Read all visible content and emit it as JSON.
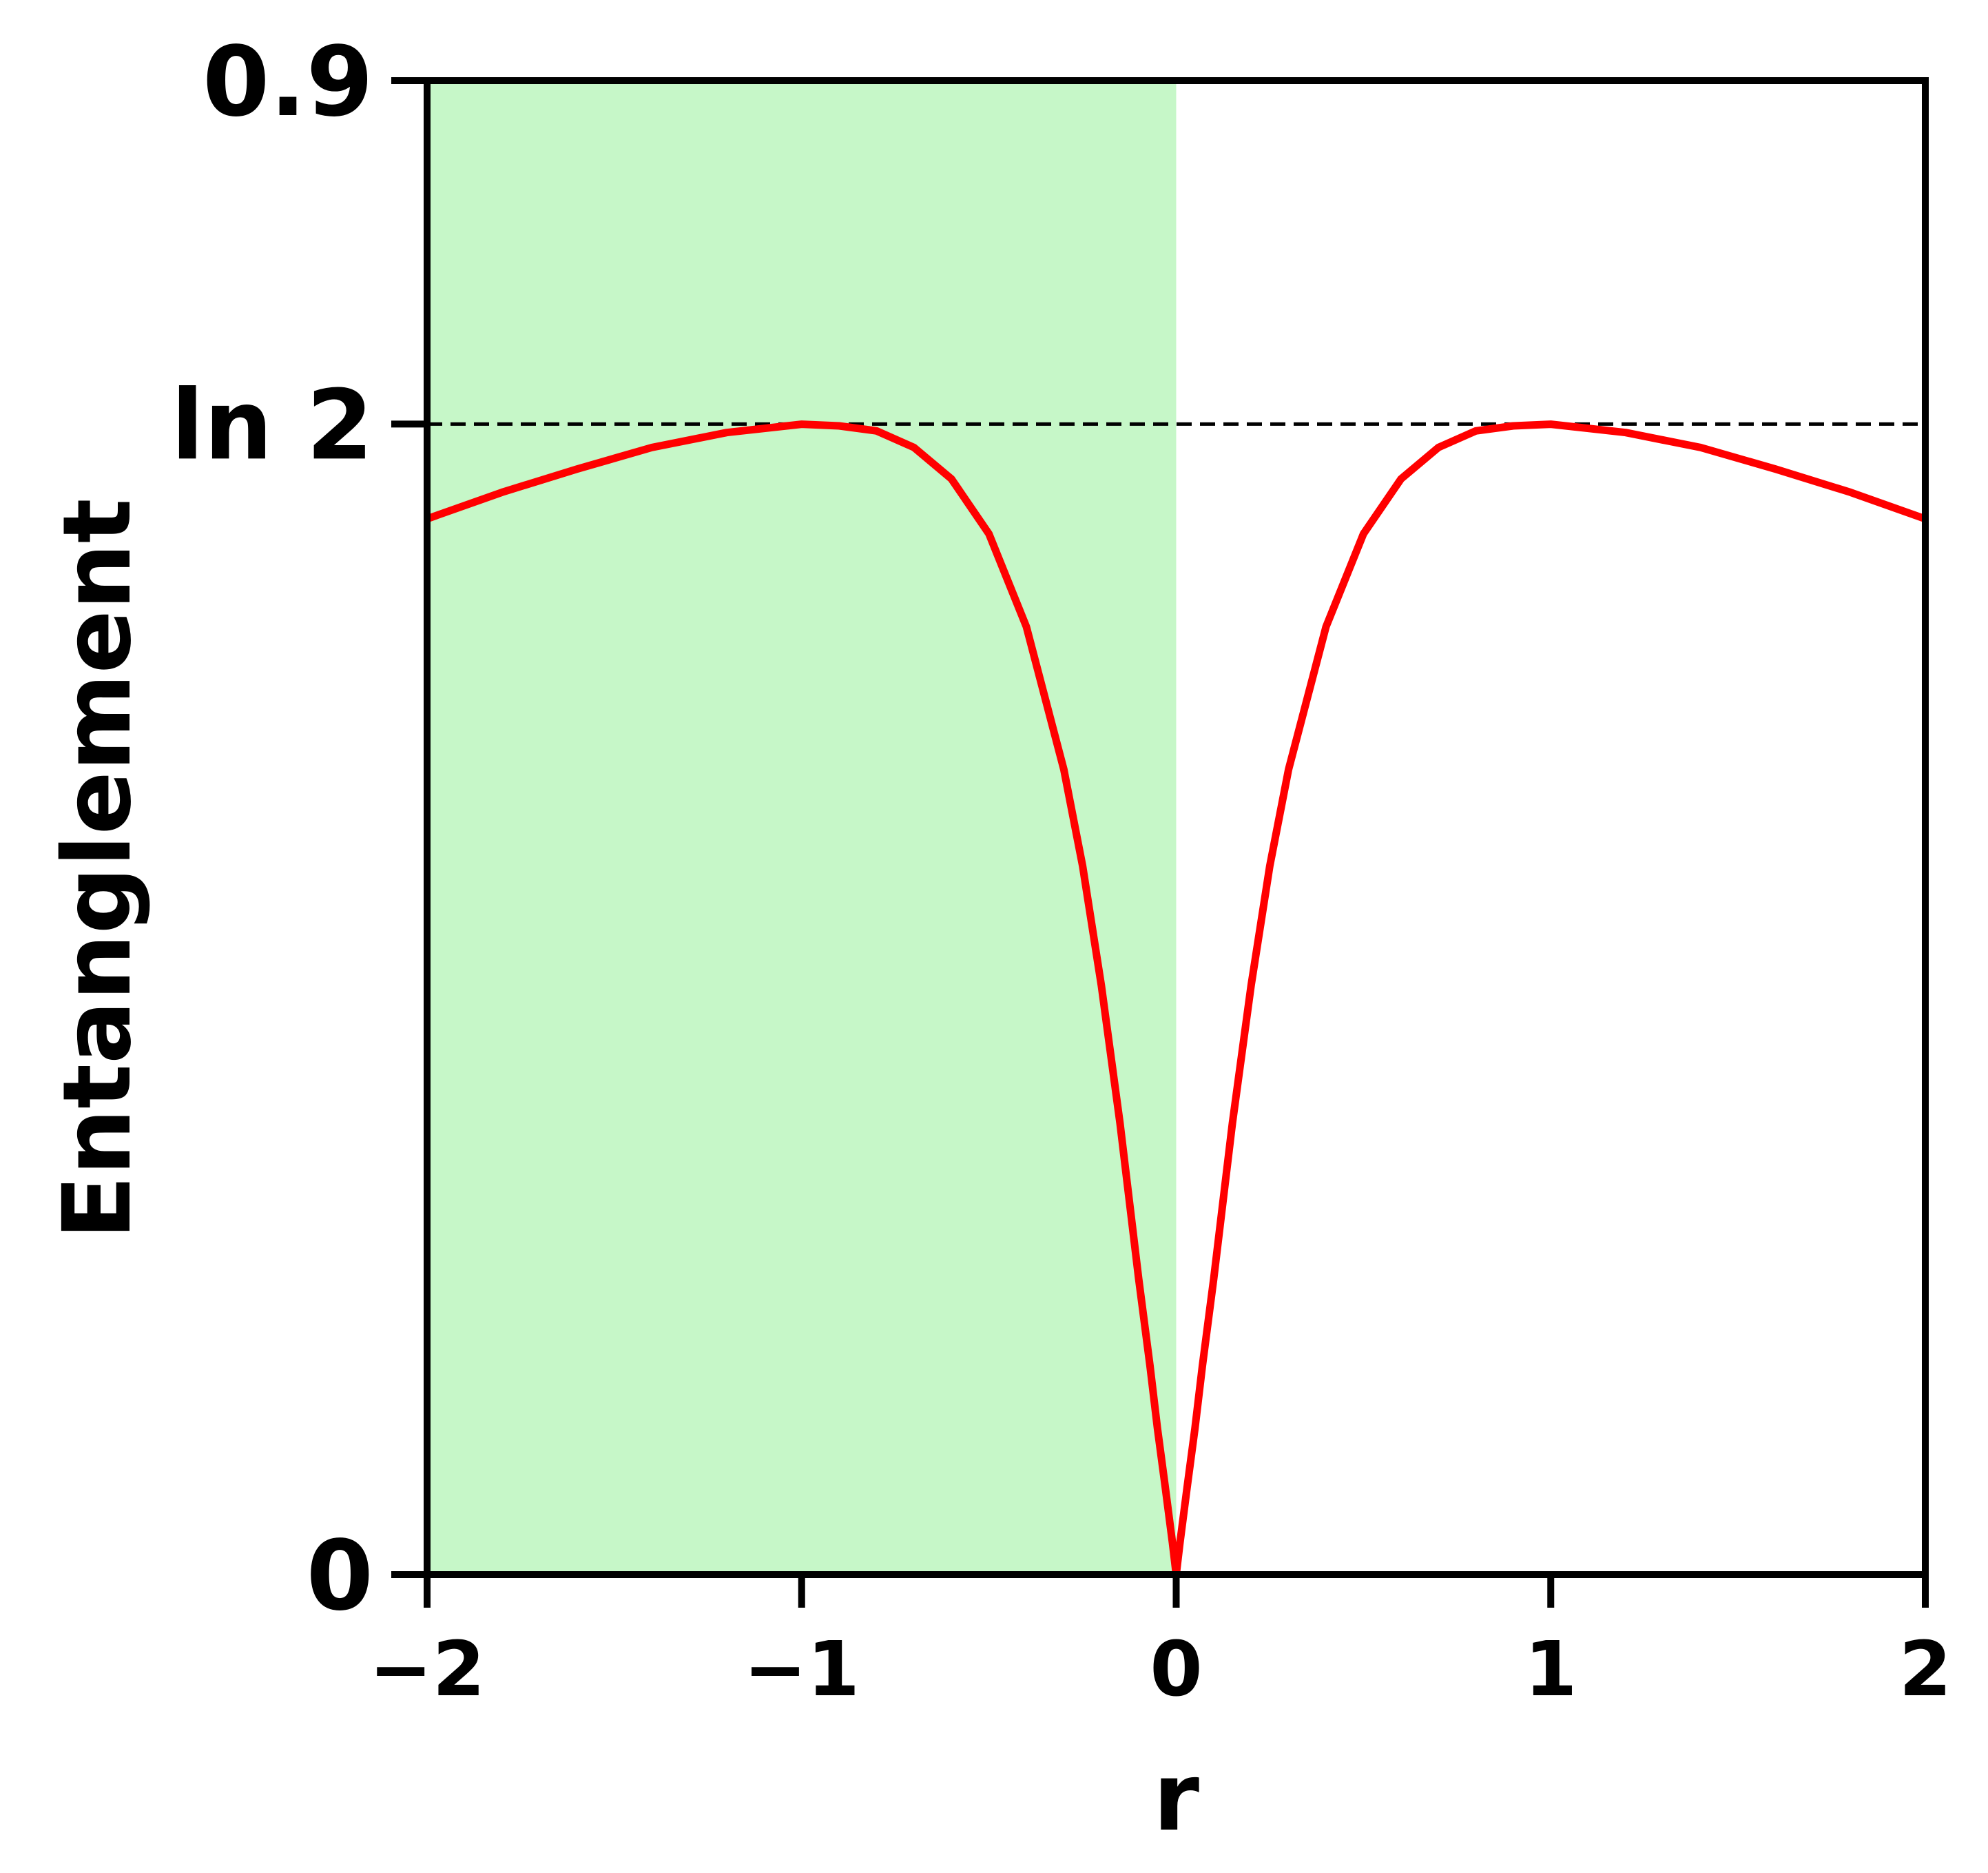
{
  "chart_data": {
    "type": "line",
    "title": "",
    "xlabel": "r",
    "ylabel": "Entanglement",
    "xlim": [
      -2,
      2
    ],
    "ylim": [
      0,
      0.9
    ],
    "x_ticks": [
      -2,
      -1,
      0,
      1,
      2
    ],
    "x_tick_labels": [
      "−2",
      "−1",
      "0",
      "1",
      "2"
    ],
    "y_ticks": [
      0,
      0.6931,
      0.9
    ],
    "y_tick_labels": [
      "0",
      "ln 2",
      "0.9"
    ],
    "reference_line": {
      "y": 0.6931,
      "style": "dashed",
      "color": "#000000"
    },
    "shaded_region": {
      "x_from": -2,
      "x_to": 0,
      "color": "#c6f7c8"
    },
    "grid": false,
    "series": [
      {
        "color": "#ff0000",
        "x": [
          -2.0,
          -1.8,
          -1.6,
          -1.4,
          -1.2,
          -1.0,
          -0.9,
          -0.8,
          -0.7,
          -0.6,
          -0.5,
          -0.4,
          -0.3,
          -0.25,
          -0.2,
          -0.15,
          -0.1,
          -0.07,
          -0.05,
          -0.03,
          -0.01,
          0.0,
          0.01,
          0.03,
          0.05,
          0.07,
          0.1,
          0.15,
          0.2,
          0.25,
          0.3,
          0.4,
          0.5,
          0.6,
          0.7,
          0.8,
          0.9,
          1.0,
          1.2,
          1.4,
          1.6,
          1.8,
          2.0
        ],
        "values": [
          0.636,
          0.652,
          0.666,
          0.679,
          0.688,
          0.693,
          0.692,
          0.689,
          0.679,
          0.66,
          0.627,
          0.571,
          0.485,
          0.427,
          0.355,
          0.272,
          0.178,
          0.126,
          0.088,
          0.054,
          0.019,
          0.0,
          0.019,
          0.054,
          0.088,
          0.126,
          0.178,
          0.272,
          0.355,
          0.427,
          0.485,
          0.571,
          0.627,
          0.66,
          0.679,
          0.689,
          0.692,
          0.693,
          0.688,
          0.679,
          0.666,
          0.652,
          0.636
        ]
      }
    ]
  }
}
